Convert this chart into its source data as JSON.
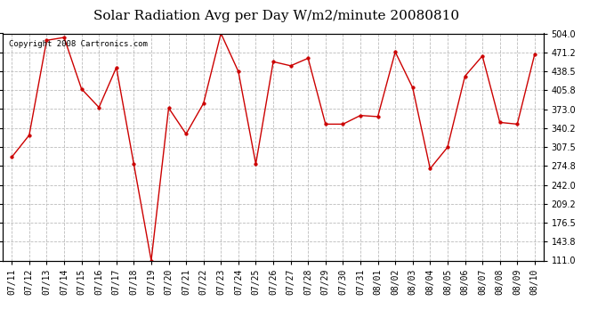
{
  "title": "Solar Radiation Avg per Day W/m2/minute 20080810",
  "copyright_text": "Copyright 2008 Cartronics.com",
  "dates": [
    "07/11",
    "07/12",
    "07/13",
    "07/14",
    "07/15",
    "07/16",
    "07/17",
    "07/18",
    "07/19",
    "07/20",
    "07/21",
    "07/22",
    "07/23",
    "07/24",
    "07/25",
    "07/26",
    "07/27",
    "07/28",
    "07/29",
    "07/30",
    "07/31",
    "08/01",
    "08/02",
    "08/03",
    "08/04",
    "08/05",
    "08/06",
    "08/07",
    "08/08",
    "08/09",
    "08/10"
  ],
  "values": [
    290.0,
    328.0,
    492.0,
    497.0,
    408.0,
    376.0,
    445.0,
    278.0,
    111.0,
    375.0,
    330.0,
    383.0,
    504.0,
    438.0,
    278.0,
    455.0,
    448.0,
    461.0,
    347.0,
    347.0,
    362.0,
    360.0,
    472.0,
    410.0,
    270.0,
    307.0,
    430.0,
    465.0,
    350.0,
    347.0,
    468.0
  ],
  "line_color": "#cc0000",
  "marker": "o",
  "marker_size": 2.5,
  "bg_color": "#ffffff",
  "plot_bg_color": "#ffffff",
  "grid_color": "#bbbbbb",
  "grid_style": "--",
  "ylim": [
    111.0,
    504.0
  ],
  "yticks": [
    111.0,
    143.8,
    176.5,
    209.2,
    242.0,
    274.8,
    307.5,
    340.2,
    373.0,
    405.8,
    438.5,
    471.2,
    504.0
  ],
  "title_fontsize": 11,
  "tick_fontsize": 7,
  "copyright_fontsize": 6.5
}
